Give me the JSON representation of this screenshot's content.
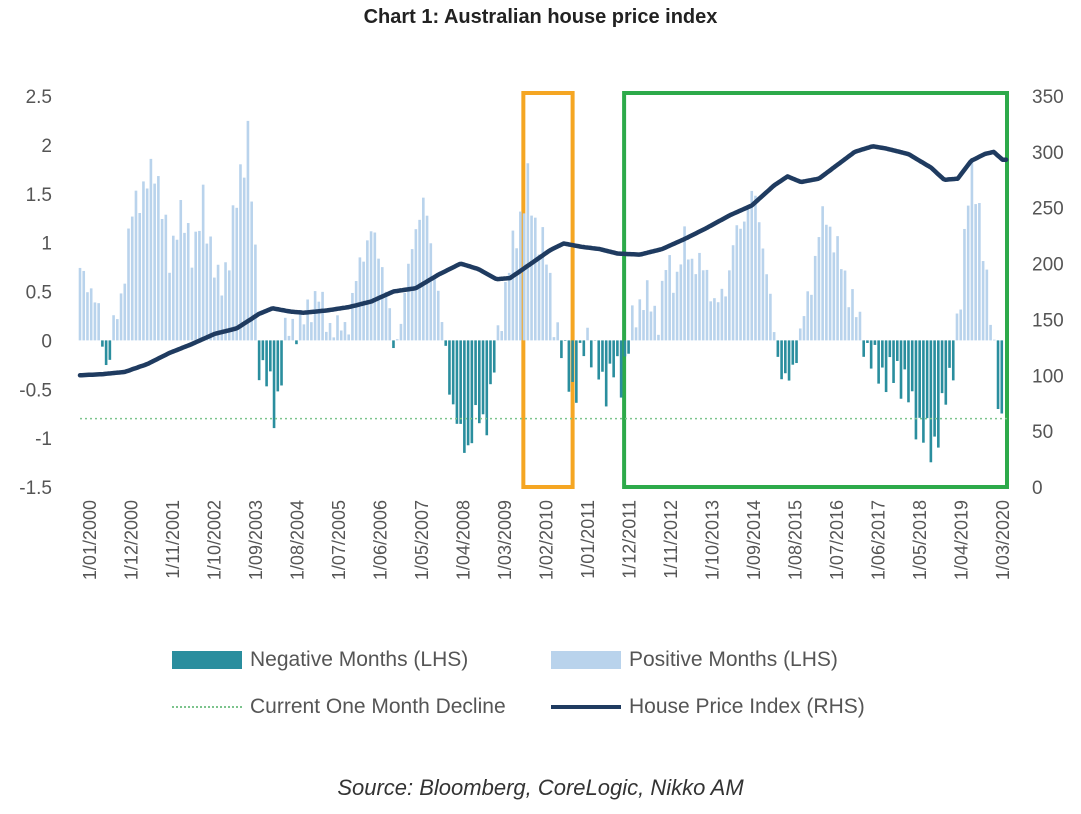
{
  "chart_data": {
    "type": "bar",
    "title": "Chart 1: Australian house price index",
    "source": "Source: Bloomberg, CoreLogic, Nikko AM",
    "left_axis": {
      "min": -1.5,
      "max": 2.5,
      "ticks": [
        "2.5",
        "2",
        "1.5",
        "1",
        "0.5",
        "0",
        "-0.5",
        "-1",
        "-1.5"
      ]
    },
    "right_axis": {
      "min": 0,
      "max": 350,
      "ticks": [
        "350",
        "300",
        "250",
        "200",
        "150",
        "100",
        "50",
        "0"
      ]
    },
    "x_range": [
      2000.0,
      2020.7
    ],
    "x_tick_labels": [
      "1/01/2000",
      "1/12/2000",
      "1/11/2001",
      "1/10/2002",
      "1/09/2003",
      "1/08/2004",
      "1/07/2005",
      "1/06/2006",
      "1/05/2007",
      "1/04/2008",
      "1/03/2009",
      "1/02/2010",
      "1/01/2011",
      "1/12/2011",
      "1/11/2012",
      "1/10/2013",
      "1/09/2014",
      "1/08/2015",
      "1/07/2016",
      "1/06/2017",
      "1/05/2018",
      "1/04/2019",
      "1/03/2020"
    ],
    "monthly_change_keyframes": [
      [
        2000.0,
        0.7
      ],
      [
        2000.2,
        0.6
      ],
      [
        2000.45,
        0.2
      ],
      [
        2000.6,
        -0.3
      ],
      [
        2000.75,
        0.1
      ],
      [
        2000.9,
        0.4
      ],
      [
        2001.2,
        1.4
      ],
      [
        2001.5,
        1.6
      ],
      [
        2001.7,
        1.8
      ],
      [
        2001.85,
        1.3
      ],
      [
        2002.0,
        0.8
      ],
      [
        2002.2,
        1.3
      ],
      [
        2002.4,
        1.1
      ],
      [
        2002.55,
        0.9
      ],
      [
        2002.75,
        1.4
      ],
      [
        2002.95,
        0.9
      ],
      [
        2003.1,
        0.5
      ],
      [
        2003.3,
        0.8
      ],
      [
        2003.55,
        1.6
      ],
      [
        2003.75,
        2.1
      ],
      [
        2003.9,
        1.0
      ],
      [
        2004.0,
        -0.2
      ],
      [
        2004.2,
        -0.4
      ],
      [
        2004.35,
        -0.8
      ],
      [
        2004.5,
        -0.3
      ],
      [
        2004.6,
        0.1
      ],
      [
        2005.0,
        0.2
      ],
      [
        2005.3,
        0.5
      ],
      [
        2005.5,
        0.2
      ],
      [
        2005.75,
        0.1
      ],
      [
        2006.0,
        0.2
      ],
      [
        2006.3,
        0.9
      ],
      [
        2006.5,
        1.1
      ],
      [
        2006.75,
        0.8
      ],
      [
        2006.9,
        0.3
      ],
      [
        2007.0,
        -0.1
      ],
      [
        2007.2,
        0.3
      ],
      [
        2007.5,
        1.2
      ],
      [
        2007.7,
        1.4
      ],
      [
        2007.9,
        0.8
      ],
      [
        2008.1,
        0.1
      ],
      [
        2008.3,
        -0.6
      ],
      [
        2008.5,
        -1.0
      ],
      [
        2008.65,
        -1.1
      ],
      [
        2008.85,
        -0.8
      ],
      [
        2009.1,
        -0.8
      ],
      [
        2009.25,
        -0.3
      ],
      [
        2009.35,
        0.1
      ],
      [
        2009.6,
        0.8
      ],
      [
        2009.8,
        1.2
      ],
      [
        2010.0,
        1.6
      ],
      [
        2010.15,
        1.2
      ],
      [
        2010.4,
        0.9
      ],
      [
        2010.6,
        0.2
      ],
      [
        2010.75,
        -0.1
      ],
      [
        2010.9,
        -0.3
      ],
      [
        2011.05,
        -0.6
      ],
      [
        2011.15,
        -0.3
      ],
      [
        2011.3,
        0.1
      ],
      [
        2011.5,
        -0.2
      ],
      [
        2011.7,
        -0.5
      ],
      [
        2011.9,
        -0.3
      ],
      [
        2012.1,
        -0.4
      ],
      [
        2012.3,
        0.1
      ],
      [
        2012.6,
        0.5
      ],
      [
        2012.9,
        0.2
      ],
      [
        2013.1,
        0.8
      ],
      [
        2013.3,
        0.6
      ],
      [
        2013.5,
        1.0
      ],
      [
        2013.7,
        0.8
      ],
      [
        2014.0,
        0.7
      ],
      [
        2014.2,
        0.3
      ],
      [
        2014.45,
        0.6
      ],
      [
        2014.6,
        1.0
      ],
      [
        2014.85,
        1.3
      ],
      [
        2015.05,
        1.5
      ],
      [
        2015.2,
        1.2
      ],
      [
        2015.35,
        0.6
      ],
      [
        2015.5,
        0.1
      ],
      [
        2015.65,
        -0.3
      ],
      [
        2015.8,
        -0.5
      ],
      [
        2015.95,
        -0.2
      ],
      [
        2016.1,
        0.1
      ],
      [
        2016.3,
        0.5
      ],
      [
        2016.5,
        1.1
      ],
      [
        2016.65,
        1.3
      ],
      [
        2016.85,
        1.0
      ],
      [
        2017.05,
        0.7
      ],
      [
        2017.25,
        0.4
      ],
      [
        2017.45,
        0.1
      ],
      [
        2017.65,
        -0.2
      ],
      [
        2017.85,
        -0.3
      ],
      [
        2018.05,
        -0.4
      ],
      [
        2018.25,
        -0.3
      ],
      [
        2018.45,
        -0.5
      ],
      [
        2018.6,
        -0.7
      ],
      [
        2018.75,
        -0.9
      ],
      [
        2018.9,
        -1.0
      ],
      [
        2019.05,
        -1.1
      ],
      [
        2019.2,
        -0.9
      ],
      [
        2019.35,
        -0.5
      ],
      [
        2019.5,
        -0.2
      ],
      [
        2019.7,
        0.5
      ],
      [
        2019.8,
        1.5
      ],
      [
        2019.9,
        1.8
      ],
      [
        2020.05,
        1.3
      ],
      [
        2020.2,
        0.9
      ],
      [
        2020.35,
        0.2
      ],
      [
        2020.45,
        -0.4
      ],
      [
        2020.55,
        -0.8
      ]
    ],
    "house_price_index_keyframes": [
      [
        2000.0,
        100
      ],
      [
        2000.5,
        101
      ],
      [
        2001.0,
        103
      ],
      [
        2001.5,
        110
      ],
      [
        2002.0,
        120
      ],
      [
        2002.5,
        128
      ],
      [
        2003.0,
        137
      ],
      [
        2003.5,
        142
      ],
      [
        2004.0,
        155
      ],
      [
        2004.3,
        160
      ],
      [
        2004.7,
        157
      ],
      [
        2005.0,
        156
      ],
      [
        2005.5,
        158
      ],
      [
        2006.0,
        161
      ],
      [
        2006.5,
        166
      ],
      [
        2007.0,
        175
      ],
      [
        2007.5,
        178
      ],
      [
        2008.0,
        190
      ],
      [
        2008.5,
        200
      ],
      [
        2008.9,
        195
      ],
      [
        2009.3,
        186
      ],
      [
        2009.6,
        187
      ],
      [
        2010.0,
        198
      ],
      [
        2010.5,
        212
      ],
      [
        2010.8,
        218
      ],
      [
        2011.2,
        215
      ],
      [
        2011.6,
        213
      ],
      [
        2012.0,
        209
      ],
      [
        2012.5,
        208
      ],
      [
        2013.0,
        213
      ],
      [
        2013.5,
        222
      ],
      [
        2014.0,
        232
      ],
      [
        2014.5,
        243
      ],
      [
        2015.0,
        252
      ],
      [
        2015.5,
        270
      ],
      [
        2015.8,
        278
      ],
      [
        2016.1,
        273
      ],
      [
        2016.5,
        276
      ],
      [
        2016.9,
        288
      ],
      [
        2017.3,
        300
      ],
      [
        2017.7,
        305
      ],
      [
        2018.0,
        303
      ],
      [
        2018.5,
        298
      ],
      [
        2019.0,
        286
      ],
      [
        2019.3,
        275
      ],
      [
        2019.6,
        276
      ],
      [
        2019.9,
        292
      ],
      [
        2020.2,
        298
      ],
      [
        2020.4,
        300
      ],
      [
        2020.6,
        293
      ]
    ],
    "current_one_month_decline": -0.8,
    "highlight_boxes": [
      {
        "name": "orange-highlight-box",
        "x_start": 2009.9,
        "x_end": 2011.0,
        "color": "#F5A623"
      },
      {
        "name": "green-highlight-box",
        "x_start": 2012.15,
        "x_end": 2020.7,
        "color": "#2DAA4A"
      }
    ],
    "legend": {
      "negative": "Negative Months (LHS)",
      "positive": "Positive Months (LHS)",
      "decline": "Current One Month Decline",
      "index": "House Price Index (RHS)"
    },
    "colors": {
      "negative": "#2A8E9E",
      "positive": "#B9D3EC",
      "index": "#1F3B60",
      "decline": "#7CC48D",
      "axis_text": "#555555"
    }
  }
}
